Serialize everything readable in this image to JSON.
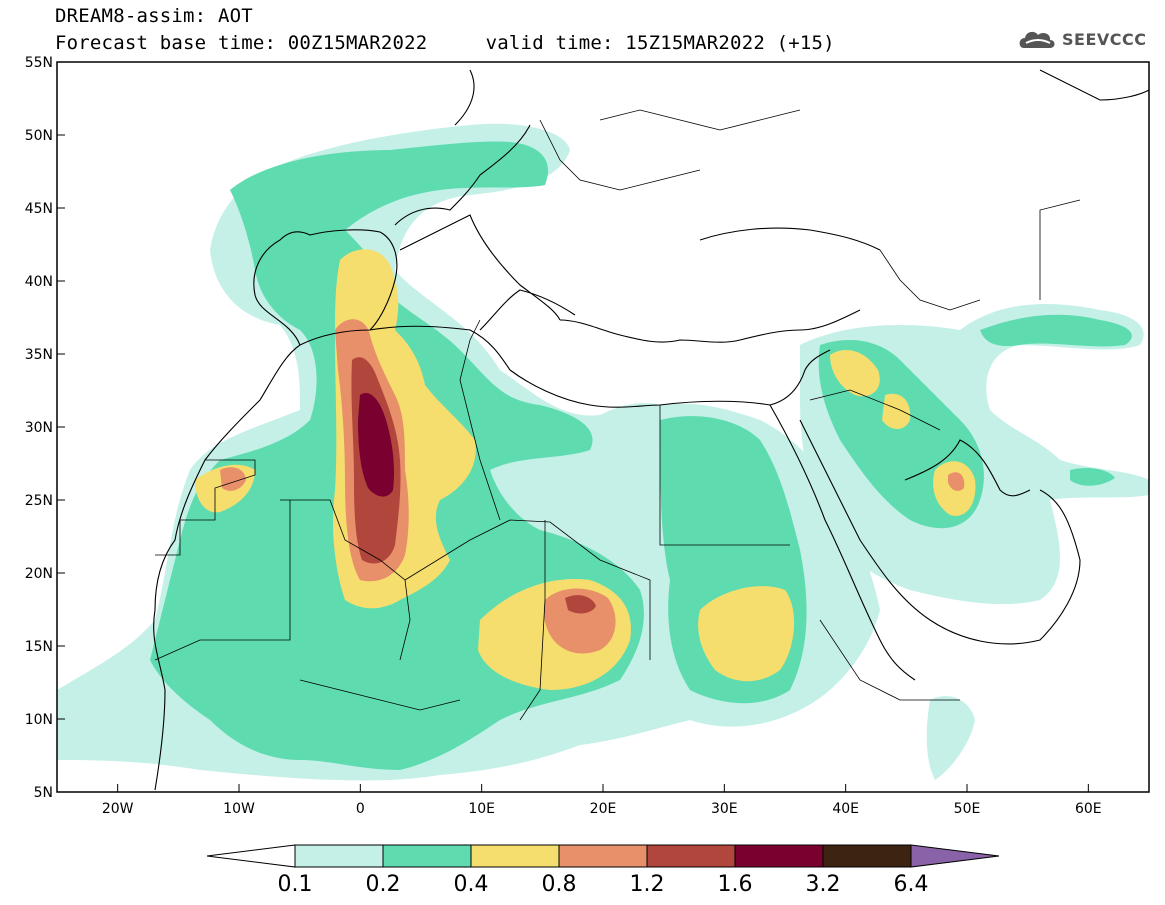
{
  "header": {
    "title_line1": "DREAM8-assim: AOT",
    "title_line2": "Forecast base time: 00Z15MAR2022     valid time: 15Z15MAR2022 (+15)",
    "logo_text": "SEEVCCC"
  },
  "map": {
    "lon_range": [
      -25,
      65
    ],
    "lat_range": [
      5,
      55
    ],
    "lon_ticks": [
      "20W",
      "10W",
      "0",
      "10E",
      "20E",
      "30E",
      "40E",
      "50E",
      "60E"
    ],
    "lat_ticks": [
      "55N",
      "50N",
      "45N",
      "40N",
      "35N",
      "30N",
      "25N",
      "20N",
      "15N",
      "10N",
      "5N"
    ]
  },
  "colorbar": {
    "labels": [
      "0.1",
      "0.2",
      "0.4",
      "0.8",
      "1.2",
      "1.6",
      "3.2",
      "6.4"
    ],
    "colors": [
      "#ffffff",
      "#c4f0e8",
      "#5edcb0",
      "#f5de6e",
      "#e8906a",
      "#b0463c",
      "#7a0030",
      "#3d2312",
      "#8a62a8"
    ]
  }
}
